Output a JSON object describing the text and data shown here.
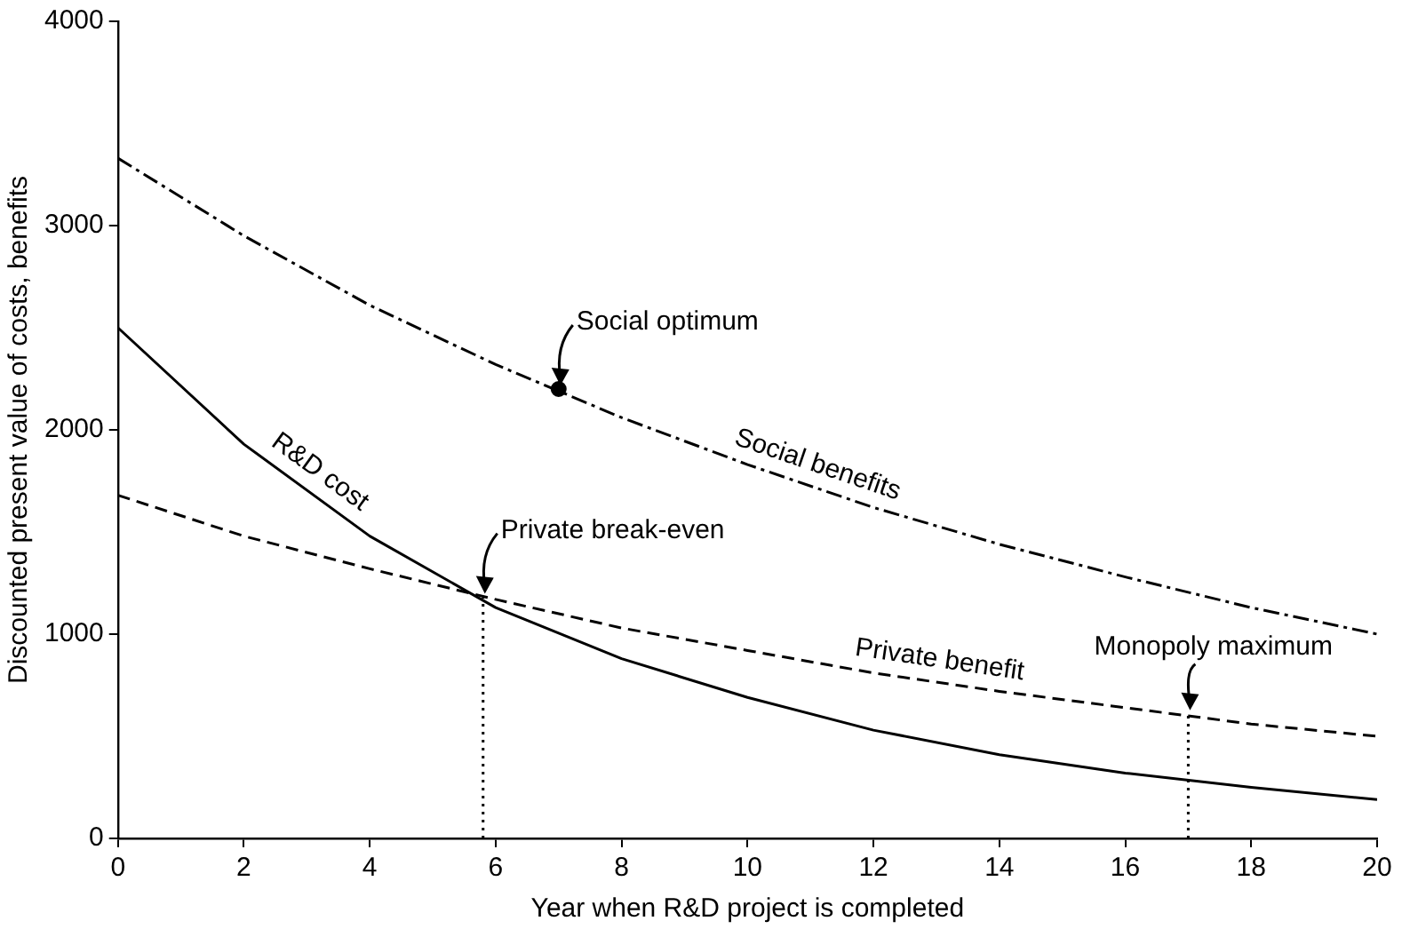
{
  "chart_data": {
    "type": "line",
    "xlabel": "Year when R&D project is completed",
    "ylabel": "Discounted present value of costs, benefits",
    "xlim": [
      0,
      20
    ],
    "xticks": [
      0,
      2,
      4,
      6,
      8,
      10,
      12,
      14,
      16,
      18,
      20
    ],
    "ylim": [
      0,
      4000
    ],
    "yticks": [
      0,
      1000,
      2000,
      3000,
      4000
    ],
    "grid": false,
    "legend": false,
    "marker": "none",
    "series": [
      {
        "name": "R&D cost",
        "color": "#000000",
        "line_style": "solid",
        "x": [
          0,
          2,
          4,
          6,
          8,
          10,
          12,
          14,
          16,
          18,
          20
        ],
        "values": [
          2500,
          1930,
          1480,
          1130,
          880,
          690,
          530,
          410,
          320,
          250,
          190
        ]
      },
      {
        "name": "Social benefits",
        "color": "#000000",
        "line_style": "dashdot",
        "x": [
          0,
          2,
          4,
          6,
          8,
          10,
          12,
          14,
          16,
          18,
          20
        ],
        "values": [
          3330,
          2950,
          2610,
          2320,
          2060,
          1830,
          1620,
          1440,
          1280,
          1130,
          1000
        ]
      },
      {
        "name": "Private benefit",
        "color": "#000000",
        "line_style": "dashed",
        "x": [
          0,
          2,
          4,
          6,
          8,
          10,
          12,
          14,
          16,
          18,
          20
        ],
        "values": [
          1680,
          1480,
          1320,
          1170,
          1030,
          920,
          810,
          720,
          640,
          560,
          500
        ]
      },
      {
        "color": "#000000",
        "line_style": "dotted",
        "x": [
          5.8,
          5.8
        ],
        "values": [
          0,
          1180
        ]
      },
      {
        "color": "#000000",
        "line_style": "dotted",
        "x": [
          17,
          17
        ],
        "values": [
          0,
          610
        ]
      },
      {
        "type": "scatter",
        "color": "#000000",
        "marker": "circle",
        "x": [
          7
        ],
        "values": [
          2200
        ]
      }
    ],
    "annotations": [
      {
        "text": "Social optimum",
        "x": 7,
        "y": 2200
      },
      {
        "text": "Private break-even",
        "x": 5.8,
        "y": 1180
      },
      {
        "text": "Monopoly maximum",
        "x": 17,
        "y": 610
      }
    ]
  }
}
